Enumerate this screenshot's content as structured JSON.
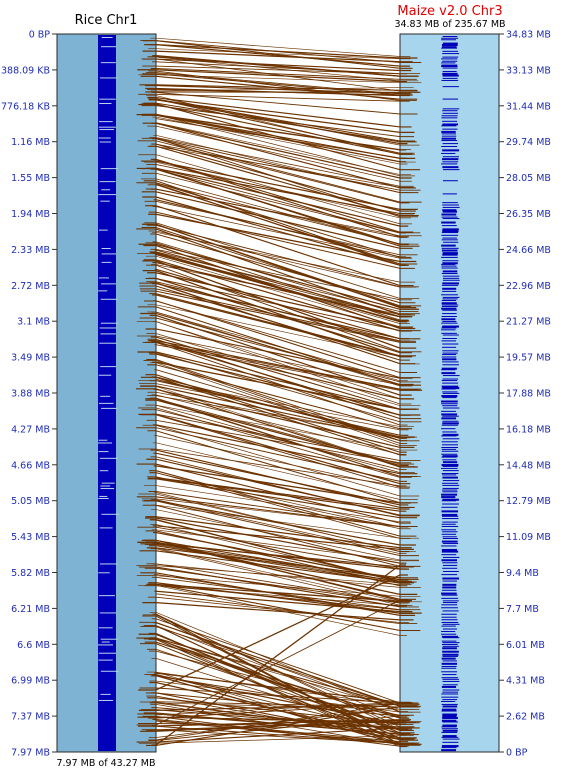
{
  "left_chromosome": {
    "title": "Rice Chr1",
    "footer": "7.97 MB of 43.27 MB",
    "ticks": [
      "0 BP",
      "388.09 KB",
      "776.18 KB",
      "1.16 MB",
      "1.55 MB",
      "1.94 MB",
      "2.33 MB",
      "2.72 MB",
      "3.1 MB",
      "3.49 MB",
      "3.88 MB",
      "4.27 MB",
      "4.66 MB",
      "5.05 MB",
      "5.43 MB",
      "5.82 MB",
      "6.21 MB",
      "6.6 MB",
      "6.99 MB",
      "7.37 MB",
      "7.97 MB"
    ]
  },
  "right_chromosome": {
    "title": "Maize v2.0 Chr3",
    "subtitle": "34.83 MB of 235.67 MB",
    "ticks": [
      "34.83 MB",
      "33.13 MB",
      "31.44 MB",
      "29.74 MB",
      "28.05 MB",
      "26.35 MB",
      "24.66 MB",
      "22.96 MB",
      "21.27 MB",
      "19.57 MB",
      "17.88 MB",
      "16.18 MB",
      "14.48 MB",
      "12.79 MB",
      "11.09 MB",
      "9.4 MB",
      "7.7 MB",
      "6.01 MB",
      "4.31 MB",
      "2.62 MB",
      "0 BP"
    ]
  },
  "colors": {
    "left_band": "#7fb3d3",
    "right_band": "#a8d5ee",
    "gene_marks": "#0000b8",
    "connectors": "#6b3300",
    "tick_label": "#1f2db5",
    "right_title": "#e00000"
  }
}
